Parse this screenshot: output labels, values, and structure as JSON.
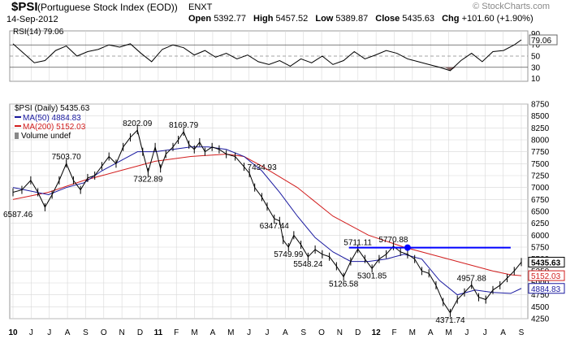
{
  "header": {
    "symbol": "$PSI",
    "name": "(Portuguese Stock Index (EOD))",
    "exchange": "ENXT",
    "date": "14-Sep-2012",
    "open_label": "Open",
    "open": "5392.77",
    "high_label": "High",
    "high": "5457.52",
    "low_label": "Low",
    "low": "5389.87",
    "close_label": "Close",
    "close": "5435.63",
    "chg_label": "Chg",
    "chg": "+101.60 (+1.90%)",
    "watermark": "© StockCharts.com"
  },
  "colors": {
    "price": "#000000",
    "ma50": "#1a1aa0",
    "ma200": "#d21e1e",
    "rsi": "#000000",
    "oversold_fill": "#8a6a6a",
    "trendline": "#0000ff",
    "grid": "#d8d8d8"
  },
  "rsi_panel": {
    "legend": "RSI(14) 79.06",
    "current_label": "79.06",
    "ticks": [
      90,
      70,
      50,
      30,
      10
    ]
  },
  "price_panel": {
    "legend_price": "$PSI (Daily) 5435.63",
    "legend_ma50": "MA(50) 4884.83",
    "legend_ma200": "MA(200) 5152.03",
    "legend_volume": "Volume undef",
    "last_price_label": "5435.63",
    "ma200_label": "5152.03",
    "ma50_label": "4884.83"
  },
  "x_axis": {
    "labels": [
      "10",
      "J",
      "J",
      "A",
      "S",
      "O",
      "N",
      "D",
      "11",
      "F",
      "M",
      "A",
      "M",
      "J",
      "J",
      "A",
      "S",
      "O",
      "N",
      "D",
      "12",
      "F",
      "M",
      "A",
      "M",
      "J",
      "J",
      "A",
      "S"
    ]
  },
  "chart_data": {
    "type": "line",
    "title": "$PSI (Portuguese Stock Index (EOD))",
    "y_ticks": [
      8750,
      8500,
      8250,
      8000,
      7750,
      7500,
      7250,
      7000,
      6750,
      6500,
      6250,
      6000,
      5750,
      5500,
      5250,
      5000,
      4750,
      4500,
      4250
    ],
    "ylim": [
      4250,
      8750
    ],
    "series": [
      {
        "name": "$PSI (Daily)",
        "points": [
          [
            0,
            6900
          ],
          [
            0.5,
            6950
          ],
          [
            1.0,
            7150
          ],
          [
            1.4,
            6900
          ],
          [
            1.8,
            6587
          ],
          [
            2.2,
            6850
          ],
          [
            2.6,
            7150
          ],
          [
            3.0,
            7503
          ],
          [
            3.4,
            7150
          ],
          [
            3.8,
            6950
          ],
          [
            4.2,
            7200
          ],
          [
            4.6,
            7250
          ],
          [
            5.0,
            7450
          ],
          [
            5.4,
            7650
          ],
          [
            5.8,
            7500
          ],
          [
            6.2,
            7850
          ],
          [
            6.6,
            8050
          ],
          [
            7.0,
            8202
          ],
          [
            7.3,
            7750
          ],
          [
            7.6,
            7323
          ],
          [
            8.0,
            7850
          ],
          [
            8.3,
            7400
          ],
          [
            8.6,
            7700
          ],
          [
            9.0,
            7850
          ],
          [
            9.3,
            8000
          ],
          [
            9.6,
            8170
          ],
          [
            9.9,
            7900
          ],
          [
            10.2,
            7800
          ],
          [
            10.5,
            7950
          ],
          [
            10.8,
            7750
          ],
          [
            11.2,
            7850
          ],
          [
            11.6,
            7800
          ],
          [
            12.0,
            7700
          ],
          [
            12.5,
            7650
          ],
          [
            13.0,
            7435
          ],
          [
            13.3,
            7300
          ],
          [
            13.6,
            7000
          ],
          [
            14.0,
            6800
          ],
          [
            14.3,
            6600
          ],
          [
            14.7,
            6347
          ],
          [
            15.0,
            6300
          ],
          [
            15.2,
            5900
          ],
          [
            15.5,
            5750
          ],
          [
            15.8,
            6000
          ],
          [
            16.2,
            5800
          ],
          [
            16.6,
            5548
          ],
          [
            17.0,
            5700
          ],
          [
            17.4,
            5600
          ],
          [
            17.8,
            5550
          ],
          [
            18.2,
            5350
          ],
          [
            18.6,
            5127
          ],
          [
            19.0,
            5450
          ],
          [
            19.4,
            5711
          ],
          [
            19.8,
            5500
          ],
          [
            20.2,
            5302
          ],
          [
            20.6,
            5500
          ],
          [
            21.0,
            5600
          ],
          [
            21.4,
            5771
          ],
          [
            21.8,
            5650
          ],
          [
            22.2,
            5600
          ],
          [
            22.6,
            5500
          ],
          [
            23.0,
            5250
          ],
          [
            23.4,
            5200
          ],
          [
            23.8,
            4950
          ],
          [
            24.2,
            4600
          ],
          [
            24.6,
            4372
          ],
          [
            25.0,
            4650
          ],
          [
            25.4,
            4800
          ],
          [
            25.8,
            4958
          ],
          [
            26.2,
            4700
          ],
          [
            26.6,
            4650
          ],
          [
            27.0,
            4850
          ],
          [
            27.4,
            4950
          ],
          [
            27.8,
            5100
          ],
          [
            28.2,
            5250
          ],
          [
            28.6,
            5436
          ]
        ]
      },
      {
        "name": "MA(50)",
        "points": [
          [
            0,
            7000
          ],
          [
            2,
            6850
          ],
          [
            3,
            7000
          ],
          [
            4,
            7100
          ],
          [
            5,
            7350
          ],
          [
            6,
            7550
          ],
          [
            7,
            7750
          ],
          [
            8,
            7750
          ],
          [
            9,
            7800
          ],
          [
            10,
            7850
          ],
          [
            11,
            7850
          ],
          [
            12,
            7800
          ],
          [
            13,
            7650
          ],
          [
            14,
            7350
          ],
          [
            15,
            6900
          ],
          [
            16,
            6400
          ],
          [
            17,
            5950
          ],
          [
            18,
            5650
          ],
          [
            19,
            5450
          ],
          [
            20,
            5450
          ],
          [
            21,
            5500
          ],
          [
            22,
            5600
          ],
          [
            23,
            5500
          ],
          [
            24,
            5050
          ],
          [
            25,
            4750
          ],
          [
            26,
            4850
          ],
          [
            27,
            4800
          ],
          [
            28,
            4780
          ],
          [
            28.6,
            4885
          ]
        ]
      },
      {
        "name": "MA(200)",
        "points": [
          [
            0,
            6750
          ],
          [
            2,
            6900
          ],
          [
            4,
            7150
          ],
          [
            6,
            7350
          ],
          [
            8,
            7550
          ],
          [
            10,
            7650
          ],
          [
            12,
            7700
          ],
          [
            13,
            7650
          ],
          [
            14,
            7450
          ],
          [
            16,
            7000
          ],
          [
            18,
            6400
          ],
          [
            20,
            6000
          ],
          [
            22,
            5750
          ],
          [
            24,
            5550
          ],
          [
            26,
            5350
          ],
          [
            27,
            5250
          ],
          [
            28,
            5170
          ],
          [
            28.6,
            5152
          ]
        ]
      }
    ],
    "annotations": [
      {
        "x": 1.8,
        "y": 6587,
        "text": "6587.46",
        "pos": "below-left"
      },
      {
        "x": 3.0,
        "y": 7503,
        "text": "7503.70",
        "pos": "above"
      },
      {
        "x": 7.0,
        "y": 8202,
        "text": "8202.09",
        "pos": "above"
      },
      {
        "x": 7.6,
        "y": 7323,
        "text": "7322.89",
        "pos": "below"
      },
      {
        "x": 9.6,
        "y": 8170,
        "text": "8169.79",
        "pos": "above"
      },
      {
        "x": 13.0,
        "y": 7435,
        "text": "7434.93",
        "pos": "right"
      },
      {
        "x": 14.7,
        "y": 6347,
        "text": "6347.44",
        "pos": "below"
      },
      {
        "x": 15.5,
        "y": 5750,
        "text": "5749.99",
        "pos": "below"
      },
      {
        "x": 16.6,
        "y": 5548,
        "text": "5548.24",
        "pos": "below"
      },
      {
        "x": 18.6,
        "y": 5127,
        "text": "5126.58",
        "pos": "below"
      },
      {
        "x": 19.4,
        "y": 5711,
        "text": "5711.11",
        "pos": "above"
      },
      {
        "x": 20.2,
        "y": 5302,
        "text": "5301.85",
        "pos": "below"
      },
      {
        "x": 21.4,
        "y": 5771,
        "text": "5770.88",
        "pos": "above"
      },
      {
        "x": 24.6,
        "y": 4372,
        "text": "4371.74",
        "pos": "below"
      },
      {
        "x": 25.8,
        "y": 4958,
        "text": "4957.88",
        "pos": "above"
      }
    ],
    "trendline": {
      "x0": 18.9,
      "x1": 28.0,
      "y": 5740
    },
    "rsi_series": [
      [
        0,
        72
      ],
      [
        0.6,
        55
      ],
      [
        1.2,
        38
      ],
      [
        1.8,
        42
      ],
      [
        2.4,
        60
      ],
      [
        3,
        68
      ],
      [
        3.6,
        50
      ],
      [
        4.2,
        58
      ],
      [
        4.8,
        62
      ],
      [
        5.4,
        70
      ],
      [
        6,
        66
      ],
      [
        6.6,
        72
      ],
      [
        7.2,
        55
      ],
      [
        7.8,
        40
      ],
      [
        8.4,
        62
      ],
      [
        9,
        70
      ],
      [
        9.6,
        65
      ],
      [
        10.2,
        52
      ],
      [
        10.8,
        60
      ],
      [
        11.4,
        48
      ],
      [
        12,
        55
      ],
      [
        12.6,
        45
      ],
      [
        13.2,
        52
      ],
      [
        13.8,
        40
      ],
      [
        14.4,
        35
      ],
      [
        15,
        42
      ],
      [
        15.6,
        32
      ],
      [
        16.2,
        45
      ],
      [
        16.8,
        38
      ],
      [
        17.4,
        50
      ],
      [
        18,
        35
      ],
      [
        18.6,
        42
      ],
      [
        19.2,
        58
      ],
      [
        19.8,
        45
      ],
      [
        20.4,
        52
      ],
      [
        21,
        60
      ],
      [
        21.6,
        55
      ],
      [
        22.2,
        45
      ],
      [
        22.8,
        40
      ],
      [
        23.4,
        35
      ],
      [
        24,
        30
      ],
      [
        24.6,
        24
      ],
      [
        25.2,
        42
      ],
      [
        25.8,
        55
      ],
      [
        26.4,
        40
      ],
      [
        27,
        58
      ],
      [
        27.6,
        60
      ],
      [
        28.2,
        70
      ],
      [
        28.6,
        79
      ]
    ]
  }
}
